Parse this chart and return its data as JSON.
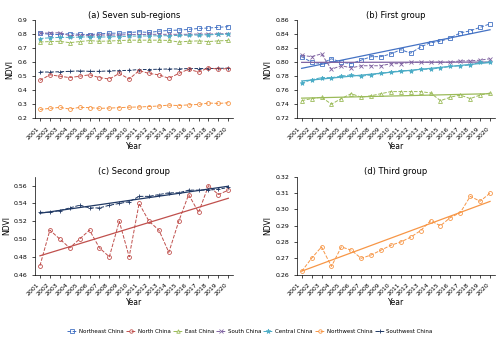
{
  "years": [
    2001,
    2002,
    2003,
    2004,
    2005,
    2006,
    2007,
    2008,
    2009,
    2010,
    2011,
    2012,
    2013,
    2014,
    2015,
    2016,
    2017,
    2018,
    2019,
    2020
  ],
  "northeast": [
    0.808,
    0.8,
    0.798,
    0.805,
    0.8,
    0.798,
    0.803,
    0.808,
    0.808,
    0.812,
    0.818,
    0.813,
    0.822,
    0.828,
    0.83,
    0.835,
    0.842,
    0.845,
    0.85,
    0.855
  ],
  "north": [
    0.47,
    0.51,
    0.5,
    0.49,
    0.5,
    0.51,
    0.49,
    0.48,
    0.52,
    0.48,
    0.54,
    0.52,
    0.51,
    0.485,
    0.52,
    0.55,
    0.53,
    0.56,
    0.55,
    0.555
  ],
  "east": [
    0.745,
    0.748,
    0.75,
    0.74,
    0.748,
    0.755,
    0.75,
    0.752,
    0.755,
    0.758,
    0.758,
    0.758,
    0.758,
    0.756,
    0.745,
    0.75,
    0.753,
    0.748,
    0.753,
    0.756
  ],
  "south": [
    0.81,
    0.808,
    0.812,
    0.79,
    0.795,
    0.792,
    0.795,
    0.795,
    0.795,
    0.798,
    0.798,
    0.8,
    0.8,
    0.8,
    0.8,
    0.8,
    0.802,
    0.802,
    0.803,
    0.805
  ],
  "central": [
    0.77,
    0.775,
    0.778,
    0.778,
    0.78,
    0.782,
    0.78,
    0.782,
    0.784,
    0.786,
    0.788,
    0.788,
    0.79,
    0.79,
    0.792,
    0.794,
    0.795,
    0.796,
    0.8,
    0.8
  ],
  "northwest": [
    0.262,
    0.27,
    0.277,
    0.265,
    0.277,
    0.275,
    0.27,
    0.272,
    0.275,
    0.278,
    0.28,
    0.283,
    0.287,
    0.293,
    0.29,
    0.295,
    0.298,
    0.308,
    0.305,
    0.31
  ],
  "southwest": [
    0.53,
    0.53,
    0.532,
    0.535,
    0.538,
    0.535,
    0.535,
    0.538,
    0.54,
    0.542,
    0.548,
    0.548,
    0.55,
    0.552,
    0.552,
    0.555,
    0.555,
    0.555,
    0.556,
    0.558
  ],
  "colors": {
    "northeast": "#4472C4",
    "north": "#C0504D",
    "east": "#9BBB59",
    "south": "#8064A2",
    "central": "#4BACC6",
    "northwest": "#F79646",
    "southwest": "#1F3864"
  },
  "titles": {
    "a": "(a) Seven sub-regions",
    "b": "(b) First group",
    "c": "(c) Second group",
    "d": "(d) Third group"
  },
  "ylims": {
    "a": [
      0.2,
      0.9
    ],
    "b": [
      0.72,
      0.86
    ],
    "c": [
      0.46,
      0.57
    ],
    "d": [
      0.26,
      0.32
    ]
  },
  "yticks": {
    "a": [
      0.2,
      0.3,
      0.4,
      0.5,
      0.6,
      0.7,
      0.8,
      0.9
    ],
    "b": [
      0.72,
      0.74,
      0.76,
      0.78,
      0.8,
      0.82,
      0.84,
      0.86
    ],
    "c": [
      0.46,
      0.47,
      0.48,
      0.49,
      0.5,
      0.51,
      0.52,
      0.53,
      0.54,
      0.55,
      0.56,
      0.57
    ],
    "d": [
      0.26,
      0.27,
      0.28,
      0.29,
      0.3,
      0.31,
      0.32
    ]
  }
}
